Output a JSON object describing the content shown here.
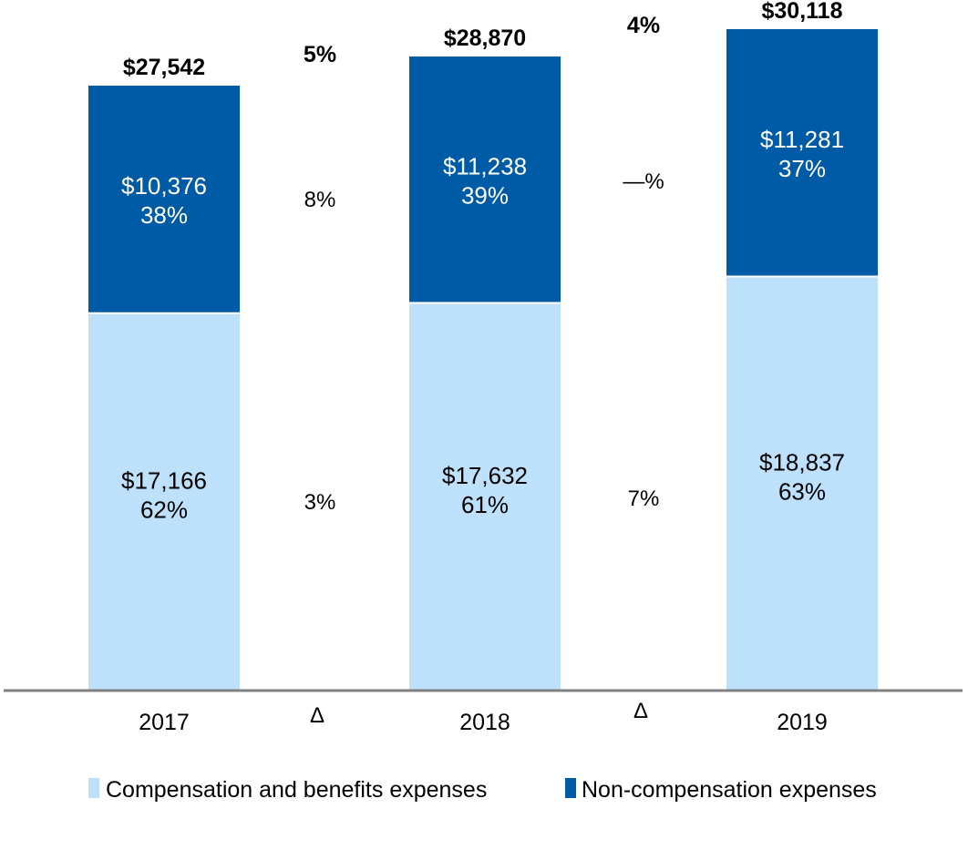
{
  "chart_data": {
    "type": "bar",
    "stacked": true,
    "categories": [
      "2017",
      "2018",
      "2019"
    ],
    "series": [
      {
        "name": "Compensation and benefits expenses",
        "color": "#BDE0FB",
        "values": [
          17166,
          17632,
          18837
        ],
        "labels": [
          "$17,166",
          "$17,632",
          "$18,837"
        ],
        "share_labels": [
          "62%",
          "61%",
          "63%"
        ]
      },
      {
        "name": "Non-compensation expenses",
        "color": "#005BA6",
        "values": [
          10376,
          11238,
          11281
        ],
        "labels": [
          "$10,376",
          "$11,238",
          "$11,281"
        ],
        "share_labels": [
          "38%",
          "39%",
          "37%"
        ]
      }
    ],
    "totals": [
      27542,
      28870,
      30118
    ],
    "total_labels": [
      "$27,542",
      "$28,870",
      "$30,118"
    ],
    "changes": [
      {
        "symbol": "Δ",
        "total": "5%",
        "non_compensation": "8%",
        "compensation": "3%"
      },
      {
        "symbol": "Δ",
        "total": "4%",
        "non_compensation": "—%",
        "compensation": "7%"
      }
    ],
    "axis_color": "#808080",
    "legend_position": "bottom",
    "grid": false,
    "title": "",
    "xlabel": "",
    "ylabel": ""
  }
}
